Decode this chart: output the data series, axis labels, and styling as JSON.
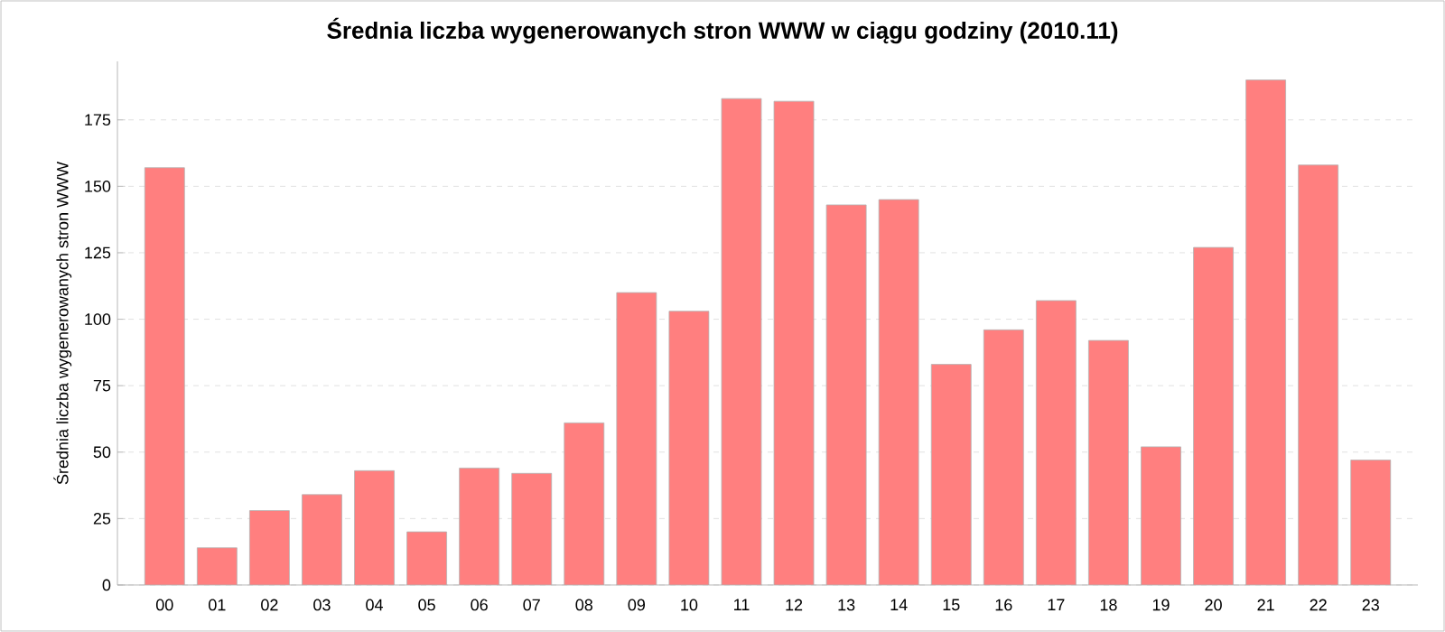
{
  "chart_data": {
    "type": "bar",
    "title": "Średnia liczba wygenerowanych stron WWW w ciągu godziny (2010.11)",
    "ylabel": "Średnia liczba wygenerowanych stron WWW",
    "categories": [
      "00",
      "01",
      "02",
      "03",
      "04",
      "05",
      "06",
      "07",
      "08",
      "09",
      "10",
      "11",
      "12",
      "13",
      "14",
      "15",
      "16",
      "17",
      "18",
      "19",
      "20",
      "21",
      "22",
      "23"
    ],
    "values": [
      157,
      14,
      28,
      34,
      43,
      20,
      44,
      42,
      61,
      110,
      103,
      183,
      182,
      143,
      145,
      83,
      96,
      107,
      92,
      52,
      127,
      190,
      158,
      47
    ],
    "color": "#ff7f7f",
    "ylim": [
      0,
      197
    ],
    "yticks": [
      0,
      25,
      50,
      75,
      100,
      125,
      150,
      175
    ],
    "grid": "y"
  }
}
